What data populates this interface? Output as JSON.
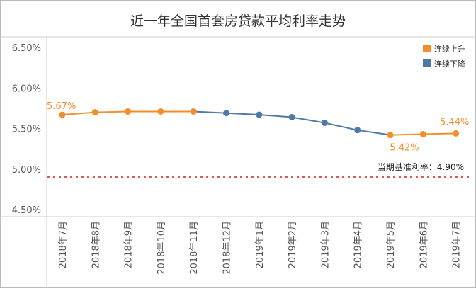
{
  "chart_data": {
    "type": "line",
    "title": "近一年全国首套房贷款平均利率走势",
    "categories": [
      "2018年7月",
      "2018年8月",
      "2018年9月",
      "2018年10月",
      "2018年11月",
      "2018年12月",
      "2019年1月",
      "2019年2月",
      "2019年3月",
      "2019年4月",
      "2019年5月",
      "2019年6月",
      "2019年7月"
    ],
    "values": [
      5.67,
      5.7,
      5.71,
      5.71,
      5.71,
      5.69,
      5.67,
      5.64,
      5.57,
      5.48,
      5.42,
      5.43,
      5.44
    ],
    "segment_types": [
      "up",
      "up",
      "up",
      "up",
      "down",
      "down",
      "down",
      "down",
      "down",
      "down",
      "up",
      "up"
    ],
    "y_ticks": [
      "6.50%",
      "6.00%",
      "5.50%",
      "5.00%",
      "4.50%"
    ],
    "y_tick_values": [
      6.5,
      6.0,
      5.5,
      5.0,
      4.5
    ],
    "ylim": [
      4.5,
      6.5
    ],
    "legend": [
      {
        "key": "up",
        "label": "连续上升",
        "color": "#f28e2b"
      },
      {
        "key": "down",
        "label": "连续下降",
        "color": "#4e79a7"
      }
    ],
    "benchmark": {
      "value": 4.9,
      "label": "当期基准利率：4.90%",
      "color": "#e15759"
    },
    "data_labels": [
      {
        "index": 0,
        "text": "5.67%"
      },
      {
        "index": 10,
        "text": "5.42%"
      },
      {
        "index": 12,
        "text": "5.44%"
      }
    ]
  }
}
